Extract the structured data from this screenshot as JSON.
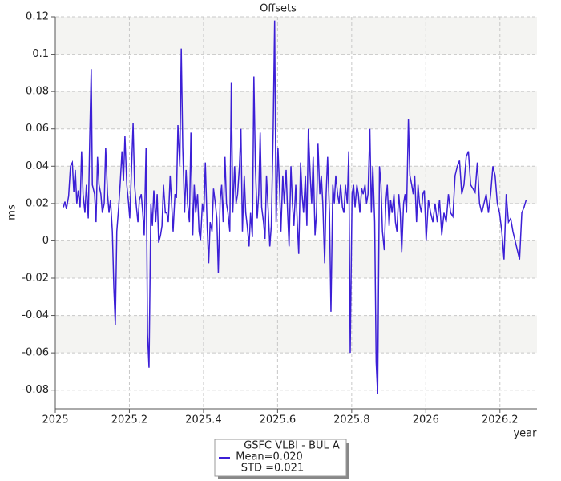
{
  "chart_data": {
    "type": "line",
    "title": "Offsets",
    "x_label": "year",
    "y_label": "ms",
    "xlim": [
      2025,
      2026.3
    ],
    "ylim": [
      -0.09,
      0.12
    ],
    "xticks": [
      2025,
      2025.2,
      2025.4,
      2025.6,
      2025.8,
      2026,
      2026.2
    ],
    "yticks": [
      0.12,
      0.1,
      0.08,
      0.06,
      0.04,
      0.02,
      0,
      -0.02,
      -0.04,
      -0.06,
      -0.08
    ],
    "grid": true,
    "legend_lines": [
      "Mean=0.020",
      "STD =0.021"
    ],
    "x": [
      2025.022,
      2025.026,
      2025.03,
      2025.036,
      2025.041,
      2025.046,
      2025.05,
      2025.054,
      2025.058,
      2025.062,
      2025.067,
      2025.071,
      2025.075,
      2025.08,
      2025.084,
      2025.089,
      2025.093,
      2025.097,
      2025.1,
      2025.106,
      2025.11,
      2025.114,
      2025.118,
      2025.123,
      2025.127,
      2025.132,
      2025.136,
      2025.141,
      2025.145,
      2025.149,
      2025.154,
      2025.158,
      2025.162,
      2025.166,
      2025.171,
      2025.175,
      2025.18,
      2025.184,
      2025.188,
      2025.193,
      2025.197,
      2025.201,
      2025.206,
      2025.21,
      2025.214,
      2025.219,
      2025.223,
      2025.227,
      2025.232,
      2025.236,
      2025.24,
      2025.245,
      2025.249,
      2025.253,
      2025.258,
      2025.262,
      2025.266,
      2025.271,
      2025.275,
      2025.279,
      2025.284,
      2025.288,
      2025.292,
      2025.297,
      2025.301,
      2025.305,
      2025.31,
      2025.314,
      2025.318,
      2025.323,
      2025.327,
      2025.331,
      2025.336,
      2025.34,
      2025.344,
      2025.349,
      2025.353,
      2025.357,
      2025.362,
      2025.366,
      2025.371,
      2025.375,
      2025.379,
      2025.384,
      2025.388,
      2025.392,
      2025.397,
      2025.401,
      2025.405,
      2025.41,
      2025.414,
      2025.418,
      2025.423,
      2025.427,
      2025.432,
      2025.436,
      2025.44,
      2025.445,
      2025.449,
      2025.453,
      2025.458,
      2025.462,
      2025.466,
      2025.471,
      2025.475,
      2025.479,
      2025.484,
      2025.488,
      2025.492,
      2025.497,
      2025.501,
      2025.505,
      2025.51,
      2025.514,
      2025.518,
      2025.523,
      2025.527,
      2025.532,
      2025.536,
      2025.54,
      2025.545,
      2025.549,
      2025.553,
      2025.557,
      2025.562,
      2025.566,
      2025.57,
      2025.575,
      2025.579,
      2025.583,
      2025.588,
      2025.592,
      2025.596,
      2025.601,
      2025.605,
      2025.609,
      2025.614,
      2025.618,
      2025.623,
      2025.627,
      2025.631,
      2025.636,
      2025.64,
      2025.644,
      2025.649,
      2025.653,
      2025.657,
      2025.662,
      2025.666,
      2025.67,
      2025.675,
      2025.679,
      2025.683,
      2025.688,
      2025.692,
      2025.696,
      2025.701,
      2025.705,
      2025.709,
      2025.714,
      2025.718,
      2025.722,
      2025.727,
      2025.731,
      2025.735,
      2025.74,
      2025.744,
      2025.749,
      2025.753,
      2025.757,
      2025.762,
      2025.766,
      2025.77,
      2025.775,
      2025.779,
      2025.783,
      2025.788,
      2025.792,
      2025.796,
      2025.801,
      2025.805,
      2025.809,
      2025.814,
      2025.818,
      2025.822,
      2025.827,
      2025.831,
      2025.836,
      2025.84,
      2025.844,
      2025.849,
      2025.853,
      2025.857,
      2025.862,
      2025.866,
      2025.87,
      2025.875,
      2025.879,
      2025.883,
      2025.888,
      2025.892,
      2025.896,
      2025.901,
      2025.905,
      2025.909,
      2025.914,
      2025.918,
      2025.922,
      2025.927,
      2025.931,
      2025.935,
      2025.94,
      2025.944,
      2025.948,
      2025.953,
      2025.957,
      2025.962,
      2025.966,
      2025.97,
      2025.975,
      2025.979,
      2025.983,
      2025.988,
      2025.992,
      2025.996,
      2026.001,
      2026.007,
      2026.013,
      2026.019,
      2026.025,
      2026.031,
      2026.037,
      2026.043,
      2026.049,
      2026.055,
      2026.061,
      2026.067,
      2026.073,
      2026.079,
      2026.085,
      2026.091,
      2026.097,
      2026.103,
      2026.109,
      2026.115,
      2026.121,
      2026.127,
      2026.133,
      2026.139,
      2026.145,
      2026.151,
      2026.157,
      2026.163,
      2026.169,
      2026.175,
      2026.181,
      2026.187,
      2026.193,
      2026.199,
      2026.205,
      2026.211,
      2026.217,
      2026.223,
      2026.229,
      2026.235,
      2026.241,
      2026.247,
      2026.253,
      2026.259,
      2026.265,
      2026.271
    ],
    "series": [
      {
        "name": "GSFC VLBI - BUL A",
        "color": "#3c1fd6",
        "values": [
          0.018,
          0.021,
          0.017,
          0.024,
          0.04,
          0.042,
          0.026,
          0.038,
          0.02,
          0.027,
          0.018,
          0.048,
          0.025,
          0.015,
          0.03,
          0.012,
          0.055,
          0.092,
          0.03,
          0.025,
          0.01,
          0.045,
          0.03,
          0.025,
          0.015,
          0.02,
          0.05,
          0.025,
          0.015,
          0.022,
          0.005,
          -0.025,
          -0.045,
          0.005,
          0.018,
          0.03,
          0.048,
          0.032,
          0.056,
          0.03,
          0.022,
          0.012,
          0.04,
          0.063,
          0.03,
          0.018,
          0.01,
          0.022,
          0.025,
          0.015,
          0.003,
          0.05,
          -0.05,
          -0.068,
          0.02,
          0.008,
          0.027,
          0.01,
          0.025,
          -0.001,
          0.003,
          0.008,
          0.03,
          0.015,
          0.015,
          0.01,
          0.035,
          0.02,
          0.005,
          0.025,
          0.023,
          0.062,
          0.04,
          0.103,
          0.05,
          0.015,
          0.038,
          0.02,
          0.01,
          0.058,
          0.003,
          0.03,
          0.015,
          0.025,
          0.005,
          0.0,
          0.02,
          0.015,
          0.042,
          0.007,
          -0.012,
          0.01,
          0.005,
          0.028,
          0.02,
          0.012,
          -0.017,
          0.022,
          0.03,
          0.01,
          0.045,
          0.02,
          0.015,
          0.005,
          0.085,
          0.015,
          0.04,
          0.02,
          0.025,
          0.04,
          0.06,
          0.005,
          0.035,
          0.015,
          0.008,
          -0.003,
          0.015,
          0.002,
          0.088,
          0.04,
          0.012,
          0.025,
          0.058,
          0.018,
          0.01,
          0.001,
          0.035,
          0.015,
          -0.003,
          0.008,
          0.058,
          0.118,
          0.01,
          0.05,
          0.03,
          0.005,
          0.035,
          0.02,
          0.038,
          0.015,
          -0.003,
          0.04,
          0.02,
          0.008,
          0.03,
          0.01,
          -0.007,
          0.042,
          0.025,
          0.015,
          0.035,
          0.008,
          0.06,
          0.035,
          0.02,
          0.045,
          0.003,
          0.015,
          0.052,
          0.025,
          0.035,
          0.02,
          -0.012,
          0.025,
          0.045,
          0.015,
          -0.038,
          0.03,
          0.02,
          0.035,
          0.025,
          0.02,
          0.03,
          0.018,
          0.015,
          0.03,
          0.02,
          0.048,
          -0.06,
          0.025,
          0.03,
          0.018,
          0.03,
          0.025,
          0.015,
          0.028,
          0.025,
          0.03,
          0.02,
          0.025,
          0.06,
          0.015,
          0.04,
          0.01,
          -0.065,
          -0.082,
          0.04,
          0.03,
          0.005,
          -0.005,
          0.02,
          0.03,
          0.008,
          0.022,
          0.015,
          0.025,
          0.01,
          0.005,
          0.025,
          0.015,
          -0.006,
          0.02,
          0.025,
          0.015,
          0.065,
          0.035,
          0.03,
          0.025,
          0.035,
          0.01,
          0.03,
          0.02,
          0.015,
          0.025,
          0.027,
          0.0,
          0.022,
          0.015,
          0.01,
          0.02,
          0.01,
          0.022,
          0.003,
          0.015,
          0.01,
          0.025,
          0.015,
          0.013,
          0.035,
          0.04,
          0.043,
          0.025,
          0.03,
          0.045,
          0.048,
          0.03,
          0.028,
          0.026,
          0.042,
          0.02,
          0.015,
          0.02,
          0.025,
          0.015,
          0.025,
          0.04,
          0.035,
          0.02,
          0.015,
          0.005,
          -0.01,
          0.025,
          0.01,
          0.012,
          0.005,
          0.0,
          -0.005,
          -0.01,
          0.015,
          0.018,
          0.022
        ]
      }
    ]
  }
}
